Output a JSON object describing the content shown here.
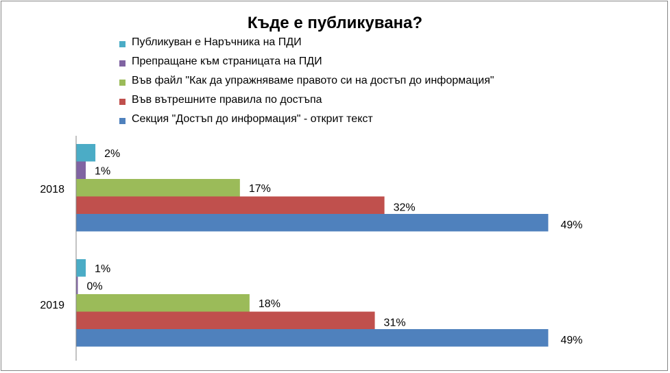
{
  "chart_data": {
    "type": "bar",
    "orientation": "horizontal",
    "title": "Къде е публикувана?",
    "categories": [
      "2018",
      "2019"
    ],
    "series": [
      {
        "name": "Публикуван е Наръчника на ПДИ",
        "color": "#4bacc6",
        "values": [
          2,
          1
        ],
        "labels": [
          "2%",
          "1%"
        ]
      },
      {
        "name": "Препращане към страницата на ПДИ",
        "color": "#8064a2",
        "values": [
          1,
          0
        ],
        "labels": [
          "1%",
          "0%"
        ]
      },
      {
        "name": "Във файл \"Как да упражняваме правото си на достъп до информация\"",
        "color": "#9bbb59",
        "values": [
          17,
          18
        ],
        "labels": [
          "17%",
          "18%"
        ]
      },
      {
        "name": "Във вътрешните правила по достъпа",
        "color": "#c0504d",
        "values": [
          32,
          31
        ],
        "labels": [
          "32%",
          "31%"
        ]
      },
      {
        "name": "Секция \"Достъп до информация\" - открит текст",
        "color": "#4f81bd",
        "values": [
          49,
          49
        ],
        "labels": [
          "49%",
          "49%"
        ]
      }
    ],
    "legend_position": "top",
    "grid": false,
    "xaxis_visible": false
  }
}
